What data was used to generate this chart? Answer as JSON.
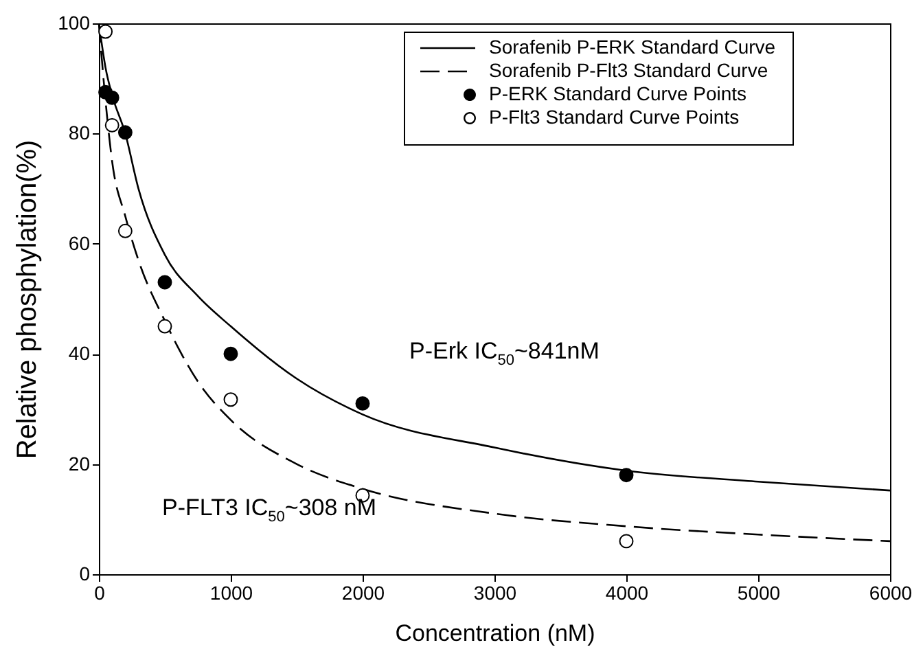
{
  "chart_data": {
    "type": "line",
    "xlabel": "Concentration (nM)",
    "ylabel": "Relative phosphylation(%)",
    "xlim": [
      0,
      6000
    ],
    "xticks": [
      0,
      1000,
      2000,
      3000,
      4000,
      5000,
      6000
    ],
    "ylim": [
      0,
      100
    ],
    "yticks": [
      0,
      20,
      40,
      60,
      80,
      100
    ],
    "legend": "top right",
    "annotations": [
      "P-Erk IC$_{50}$~841nM",
      "P-FLT3 IC$_{50}$~308 nM"
    ],
    "series": [
      {
        "name": "Sorafenib P-ERK Standard Curve",
        "type": "line",
        "line_style": "solid",
        "color": "#000000",
        "x": [
          0,
          50,
          100,
          200,
          300,
          500,
          750,
          1000,
          1500,
          2000,
          3000,
          4000,
          5000,
          6000
        ],
        "values": [
          100,
          92,
          87,
          80,
          70,
          58,
          50.5,
          45,
          35.5,
          29,
          23,
          18.8,
          16.8,
          15.2
        ]
      },
      {
        "name": "Sorafenib P-Flt3 Standard Curve",
        "type": "line",
        "line_style": "dashed",
        "color": "#000000",
        "x": [
          0,
          50,
          100,
          200,
          300,
          500,
          750,
          1000,
          1500,
          2000,
          3000,
          4000,
          5000,
          6000
        ],
        "values": [
          100,
          86,
          75,
          65,
          57,
          46,
          35,
          28,
          20,
          15.5,
          11,
          8.7,
          7.2,
          6
        ]
      },
      {
        "name": "P-ERK Standard Curve Points",
        "type": "scatter",
        "marker": "circle",
        "color": "#000000",
        "x": [
          50,
          100,
          200,
          500,
          1000,
          2000,
          4000
        ],
        "values": [
          87.5,
          86.5,
          80.2,
          53,
          40,
          31,
          18
        ]
      },
      {
        "name": "P-Flt3 Standard Curve Points",
        "type": "scatter",
        "marker": "circle",
        "color": "#ffffff",
        "x": [
          50,
          100,
          200,
          500,
          1000,
          2000,
          4000
        ],
        "values": [
          98.5,
          81.5,
          62.3,
          45,
          31.7,
          14.3,
          6
        ]
      }
    ]
  }
}
